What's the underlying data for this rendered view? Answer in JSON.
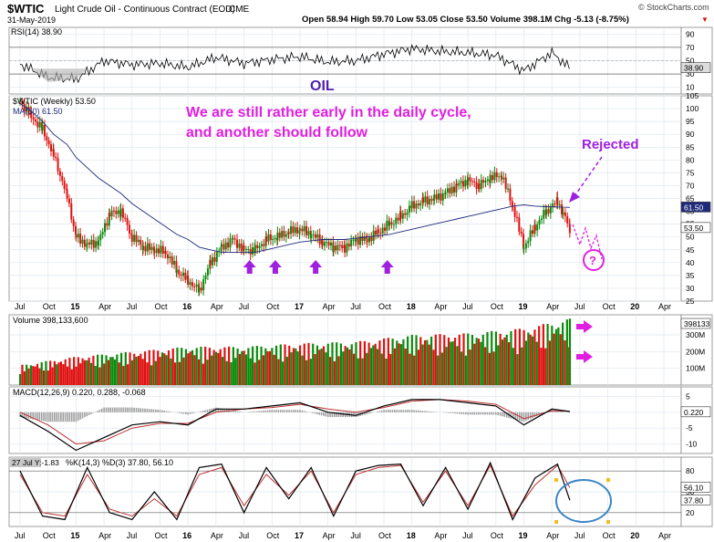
{
  "header": {
    "symbol": "$WTIC",
    "title": "Light Crude Oil - Continuous Contract (EOD)",
    "exchange": "CME",
    "date": "31-May-2019",
    "ohlc": "Open 58.94  High 59.70  Low 53.05  Close 53.50  Volume 398.1M  Chg -5.13 (-8.75%)",
    "chg_arrow": "▼",
    "watermark": "© StockCharts.com"
  },
  "colors": {
    "up": "#0a8a0a",
    "down": "#e01010",
    "annotation": "#e020e0",
    "ma": "#1f2a7a",
    "macd_hist": "#a0a0a0",
    "ellipse": "#3a86c8",
    "handle": "#f0c020"
  },
  "chart_data": [
    {
      "type": "line",
      "panel": "rsi",
      "label": "RSI(14) 38.90",
      "overlay_text": "OIL",
      "ylim": [
        0,
        100
      ],
      "yticks": [
        10,
        30,
        50,
        70,
        90
      ],
      "reference_lines": [
        30,
        70
      ],
      "last_value_badge": "38.90",
      "x": [
        2014.5,
        2014.75,
        2015.0,
        2015.25,
        2015.5,
        2015.75,
        2016.0,
        2016.25,
        2016.5,
        2016.75,
        2017.0,
        2017.25,
        2017.5,
        2017.75,
        2018.0,
        2018.25,
        2018.5,
        2018.75,
        2019.0,
        2019.25,
        2019.41
      ],
      "values": [
        45,
        25,
        22,
        50,
        44,
        46,
        40,
        55,
        46,
        52,
        56,
        48,
        50,
        60,
        68,
        64,
        62,
        58,
        35,
        62,
        38.9
      ]
    },
    {
      "type": "line",
      "panel": "price",
      "label": "$WTIC (Weekly) 53.50",
      "ma_label": "MA(50) 61.50",
      "ylim": [
        25,
        105
      ],
      "yticks": [
        25,
        30,
        35,
        40,
        45,
        50,
        55,
        60,
        65,
        70,
        75,
        80,
        85,
        90,
        95,
        100,
        105
      ],
      "last_value_badge": "53.50",
      "ma_badge": "61.50",
      "x": [
        2014.5,
        2014.6,
        2014.7,
        2014.8,
        2014.92,
        2015.0,
        2015.1,
        2015.2,
        2015.3,
        2015.4,
        2015.5,
        2015.6,
        2015.7,
        2015.8,
        2015.9,
        2016.0,
        2016.1,
        2016.2,
        2016.3,
        2016.4,
        2016.5,
        2016.6,
        2016.7,
        2016.8,
        2016.9,
        2017.0,
        2017.1,
        2017.2,
        2017.3,
        2017.4,
        2017.5,
        2017.6,
        2017.7,
        2017.8,
        2017.9,
        2018.0,
        2018.1,
        2018.2,
        2018.3,
        2018.4,
        2018.5,
        2018.6,
        2018.7,
        2018.8,
        2018.9,
        2019.0,
        2019.1,
        2019.2,
        2019.3,
        2019.35,
        2019.41
      ],
      "values": [
        103,
        97,
        92,
        82,
        66,
        50,
        47,
        48,
        59,
        60,
        50,
        46,
        45,
        44,
        37,
        33,
        29,
        40,
        46,
        49,
        45,
        45,
        49,
        50,
        52,
        53,
        51,
        48,
        46,
        46,
        49,
        49,
        52,
        55,
        58,
        62,
        64,
        65,
        67,
        70,
        72,
        70,
        73,
        74,
        62,
        46,
        54,
        60,
        64,
        59,
        53.5
      ],
      "ma_values": [
        102,
        99,
        95,
        90,
        86,
        81,
        77,
        73,
        70,
        67,
        63,
        60,
        57,
        54,
        51,
        49,
        46,
        45,
        44,
        44,
        44,
        44,
        45,
        46,
        47,
        48,
        48.5,
        49,
        49,
        49,
        49.5,
        50,
        50.5,
        51,
        52,
        53,
        54,
        55,
        56,
        57,
        58,
        59,
        60,
        61,
        62,
        62.5,
        62,
        61.8,
        61.7,
        61.6,
        61.5
      ],
      "annotations": [
        "We are still rather early in the daily cycle,",
        "and another should follow",
        "Rejected",
        "?"
      ],
      "purple_up_arrows_at": [
        2016.55,
        2016.78,
        2017.14,
        2017.78
      ]
    },
    {
      "type": "bar",
      "panel": "volume",
      "label": "Volume 398,133,600",
      "yticks": [
        "100M",
        "200M",
        "300M"
      ],
      "ylim": [
        0,
        420
      ],
      "unit": "M",
      "last_value_badge": "398133",
      "series": [
        {
          "name": "up weeks"
        },
        {
          "name": "down weeks"
        }
      ],
      "x": [
        2014.5,
        2015.0,
        2015.5,
        2016.0,
        2016.5,
        2017.0,
        2017.5,
        2018.0,
        2018.5,
        2019.0,
        2019.41
      ],
      "values": [
        120,
        170,
        200,
        230,
        230,
        250,
        260,
        300,
        310,
        340,
        398
      ]
    },
    {
      "type": "line",
      "panel": "macd",
      "label": "MACD(12,26,9) 0.220, 0.288, -0.068",
      "ylim": [
        -13,
        8
      ],
      "yticks": [
        -10,
        -5,
        0,
        5
      ],
      "last_value_badge": "0.220",
      "x": [
        2014.5,
        2014.75,
        2015.0,
        2015.25,
        2015.5,
        2015.75,
        2016.0,
        2016.25,
        2016.5,
        2016.75,
        2017.0,
        2017.25,
        2017.5,
        2017.75,
        2018.0,
        2018.25,
        2018.5,
        2018.75,
        2019.0,
        2019.25,
        2019.41
      ],
      "values": [
        -1,
        -6,
        -12,
        -8,
        -4,
        -3,
        -4,
        1,
        1,
        2,
        3,
        0,
        -1,
        2,
        4,
        4,
        3,
        2,
        -4,
        1,
        0.22
      ],
      "signal": [
        0,
        -4,
        -10,
        -9,
        -5,
        -3.5,
        -3.5,
        0,
        1,
        1.5,
        2.5,
        1,
        0,
        1.5,
        3.5,
        4,
        3.5,
        2.5,
        -2,
        0.5,
        0.288
      ]
    },
    {
      "type": "line",
      "panel": "stochastic",
      "label": "%K(14,3) %D(3) 37.80, 56.10",
      "cursor_readout": "27 Jul Y:-1.83",
      "ylim": [
        0,
        100
      ],
      "yticks": [
        20,
        50,
        80
      ],
      "reference_lines": [
        20,
        80
      ],
      "last_value_badges": [
        "56.10",
        "37.80"
      ],
      "x": [
        2014.5,
        2014.7,
        2014.9,
        2015.1,
        2015.3,
        2015.5,
        2015.7,
        2015.9,
        2016.1,
        2016.3,
        2016.5,
        2016.7,
        2016.9,
        2017.1,
        2017.3,
        2017.5,
        2017.7,
        2017.9,
        2018.1,
        2018.3,
        2018.5,
        2018.7,
        2018.9,
        2019.1,
        2019.3,
        2019.41
      ],
      "values": [
        80,
        15,
        10,
        85,
        20,
        10,
        50,
        10,
        85,
        90,
        20,
        85,
        40,
        85,
        15,
        80,
        88,
        90,
        30,
        85,
        25,
        92,
        10,
        70,
        90,
        37.8
      ],
      "signal": [
        75,
        20,
        15,
        75,
        25,
        15,
        40,
        15,
        75,
        85,
        30,
        75,
        45,
        80,
        20,
        75,
        85,
        88,
        35,
        80,
        30,
        88,
        15,
        60,
        88,
        56.1
      ]
    }
  ],
  "x_axis": {
    "ticks": [
      "Jul",
      "Oct",
      "15",
      "Apr",
      "Jul",
      "Oct",
      "16",
      "Apr",
      "Jul",
      "Oct",
      "17",
      "Apr",
      "Jul",
      "Oct",
      "18",
      "Apr",
      "Jul",
      "Oct",
      "19",
      "Apr",
      "Jul",
      "Oct",
      "20",
      "Apr"
    ],
    "tick_values": [
      2014.5,
      2014.75,
      2015.0,
      2015.25,
      2015.5,
      2015.75,
      2016.0,
      2016.25,
      2016.5,
      2016.75,
      2017.0,
      2017.25,
      2017.5,
      2017.75,
      2018.0,
      2018.25,
      2018.5,
      2018.75,
      2019.0,
      2019.25,
      2019.5,
      2019.75,
      2020.0,
      2020.25
    ]
  }
}
